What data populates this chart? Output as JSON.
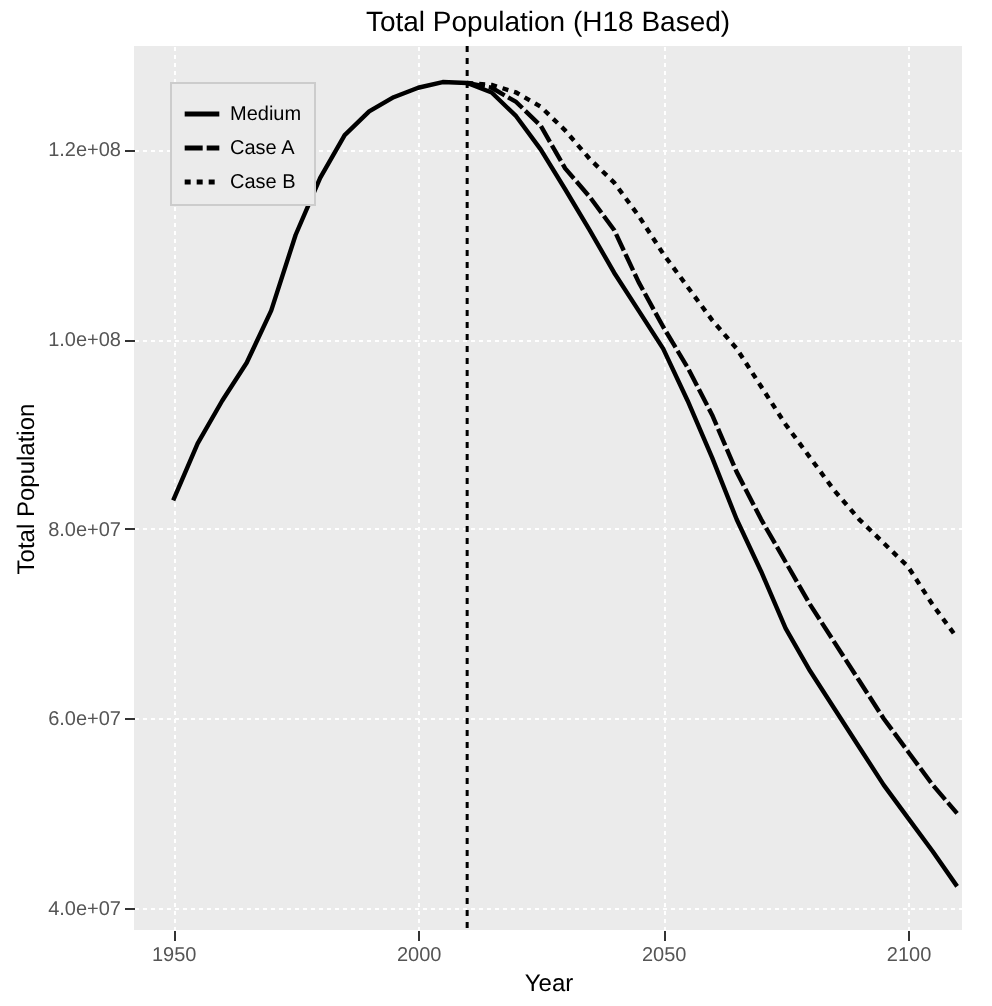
{
  "chart_data": {
    "type": "line",
    "title": "Total Population (H18 Based)",
    "xlabel": "Year",
    "ylabel": "Total Population",
    "xlim": [
      1942,
      2111
    ],
    "xticks": [
      1950,
      2000,
      2050,
      2100
    ],
    "ylim": [
      37700000,
      130900000
    ],
    "yticks": [
      {
        "value": 40000000,
        "label": "4.0e+07"
      },
      {
        "value": 60000000,
        "label": "6.0e+07"
      },
      {
        "value": 80000000,
        "label": "8.0e+07"
      },
      {
        "value": 100000000,
        "label": "1.0e+08"
      },
      {
        "value": 120000000,
        "label": "1.2e+08"
      }
    ],
    "grid": true,
    "legend": "top left",
    "ref_lines": [
      {
        "axis": "x",
        "value": 2010,
        "line_style": "dotted",
        "color": "#000000"
      }
    ],
    "series": [
      {
        "name": "Medium",
        "color": "#000000",
        "line_style": "solid",
        "x": [
          1950,
          1955,
          1960,
          1965,
          1970,
          1975,
          1980,
          1985,
          1990,
          1995,
          2000,
          2005,
          2010,
          2015,
          2020,
          2025,
          2030,
          2035,
          2040,
          2045,
          2050,
          2055,
          2060,
          2065,
          2070,
          2075,
          2080,
          2085,
          2090,
          2095,
          2100,
          2105,
          2110
        ],
        "values": [
          83000000,
          89000000,
          93500000,
          97500000,
          103000000,
          111000000,
          117000000,
          121500000,
          124000000,
          125500000,
          126500000,
          127100000,
          127000000,
          126000000,
          123500000,
          120000000,
          115800000,
          111500000,
          107000000,
          103000000,
          99000000,
          93500000,
          87500000,
          81000000,
          75500000,
          69500000,
          65000000,
          61000000,
          57000000,
          53000000,
          49500000,
          46000000,
          42300000
        ]
      },
      {
        "name": "Case A",
        "color": "#000000",
        "line_style": "dashed",
        "x": [
          2010,
          2015,
          2020,
          2025,
          2030,
          2035,
          2040,
          2045,
          2050,
          2055,
          2060,
          2065,
          2070,
          2075,
          2080,
          2085,
          2090,
          2095,
          2100,
          2105,
          2110
        ],
        "values": [
          127000000,
          126500000,
          125000000,
          122500000,
          118000000,
          115000000,
          111500000,
          106000000,
          101300000,
          97000000,
          92000000,
          86000000,
          81000000,
          76500000,
          72000000,
          68000000,
          64000000,
          60000000,
          56500000,
          53000000,
          50000000
        ]
      },
      {
        "name": "Case B",
        "color": "#000000",
        "line_style": "dotted",
        "x": [
          2010,
          2015,
          2020,
          2025,
          2030,
          2035,
          2040,
          2045,
          2050,
          2055,
          2060,
          2065,
          2070,
          2075,
          2080,
          2085,
          2090,
          2095,
          2100,
          2105,
          2110
        ],
        "values": [
          127000000,
          126800000,
          126000000,
          124500000,
          122000000,
          119000000,
          116500000,
          113000000,
          109000000,
          105500000,
          102000000,
          99000000,
          95000000,
          91000000,
          87500000,
          84000000,
          81000000,
          78500000,
          76000000,
          72000000,
          68500000
        ]
      }
    ]
  }
}
